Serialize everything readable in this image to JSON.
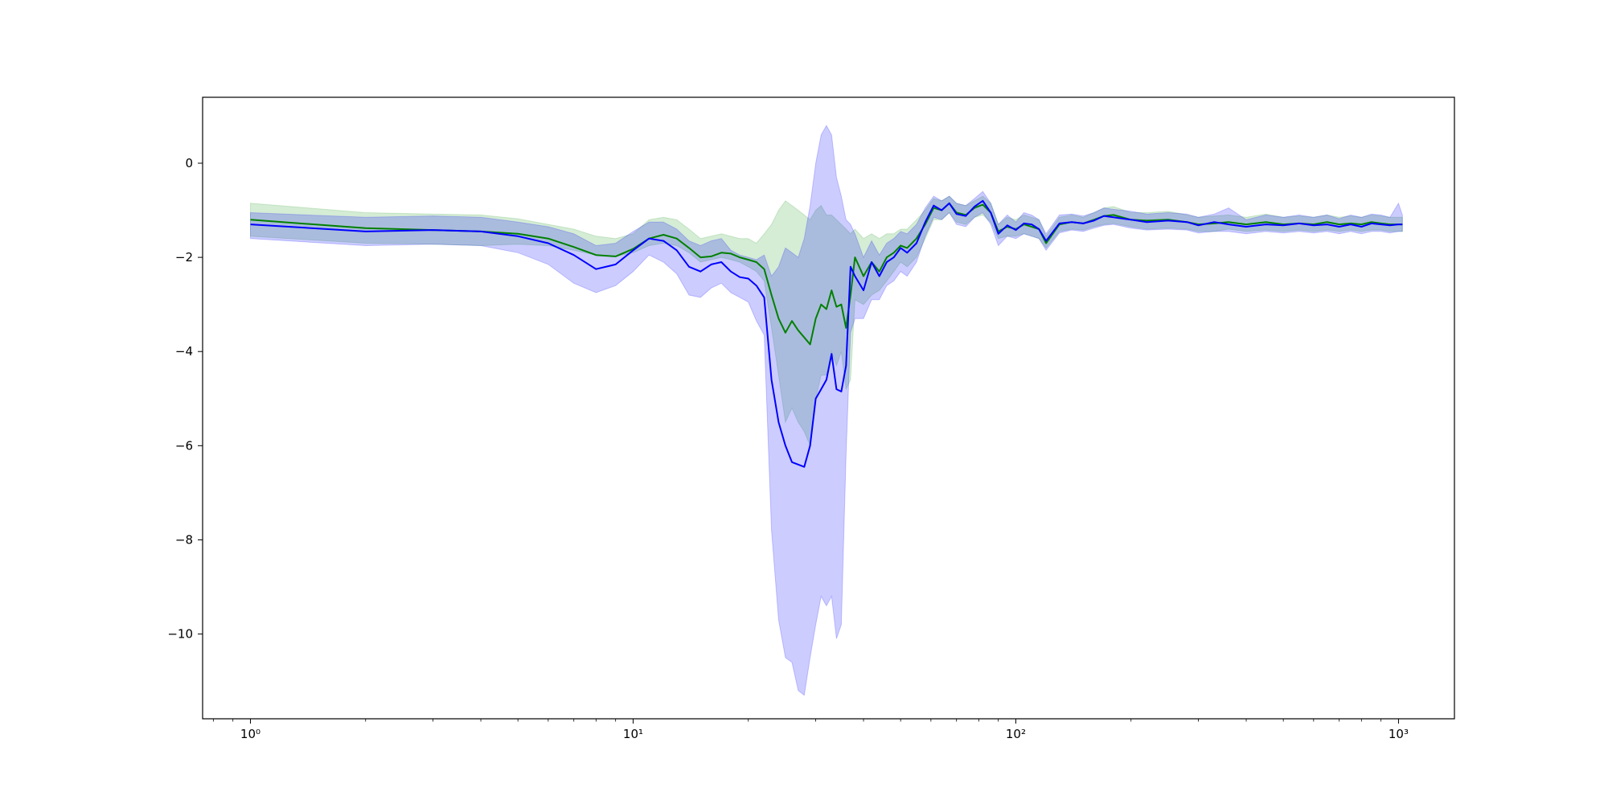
{
  "chart_data": {
    "type": "line",
    "title": "",
    "xlabel": "",
    "ylabel": "",
    "xscale": "log",
    "xlim": [
      0.75,
      1400
    ],
    "ylim": [
      -11.8,
      1.4
    ],
    "grid": false,
    "legend": "none",
    "x_ticks": [
      {
        "value": 1,
        "label": "10⁰"
      },
      {
        "value": 10,
        "label": "10¹"
      },
      {
        "value": 100,
        "label": "10²"
      },
      {
        "value": 1000,
        "label": "10³"
      }
    ],
    "y_ticks": [
      {
        "value": 0,
        "label": "0"
      },
      {
        "value": -2,
        "label": "−2"
      },
      {
        "value": -4,
        "label": "−4"
      },
      {
        "value": -6,
        "label": "−6"
      },
      {
        "value": -8,
        "label": "−8"
      },
      {
        "value": -10,
        "label": "−10"
      }
    ],
    "series": [
      {
        "color": "#008000",
        "band_color": "#2ca02c",
        "x": [
          1,
          2,
          3,
          4,
          5,
          6,
          7,
          8,
          9,
          10,
          11,
          12,
          13,
          14,
          15,
          16,
          17,
          18,
          19,
          20,
          21,
          22,
          23,
          24,
          25,
          26,
          27,
          28,
          29,
          30,
          31,
          32,
          33,
          34,
          35,
          36,
          37,
          38,
          40,
          42,
          44,
          46,
          48,
          50,
          52,
          55,
          58,
          61,
          64,
          67,
          70,
          74,
          78,
          82,
          86,
          90,
          95,
          100,
          105,
          110,
          115,
          120,
          130,
          140,
          150,
          160,
          170,
          180,
          200,
          220,
          250,
          280,
          300,
          330,
          360,
          400,
          450,
          500,
          550,
          600,
          650,
          700,
          750,
          800,
          850,
          900,
          950,
          1000,
          1024
        ],
        "y": [
          -1.2,
          -1.38,
          -1.42,
          -1.45,
          -1.5,
          -1.6,
          -1.78,
          -1.95,
          -1.98,
          -1.82,
          -1.6,
          -1.52,
          -1.6,
          -1.8,
          -2.0,
          -1.98,
          -1.9,
          -1.92,
          -2.0,
          -2.05,
          -2.1,
          -2.25,
          -2.8,
          -3.3,
          -3.6,
          -3.35,
          -3.55,
          -3.7,
          -3.85,
          -3.3,
          -3.0,
          -3.1,
          -2.7,
          -3.05,
          -3.0,
          -3.5,
          -2.8,
          -2.0,
          -2.4,
          -2.1,
          -2.3,
          -2.0,
          -1.9,
          -1.75,
          -1.8,
          -1.6,
          -1.3,
          -0.95,
          -1.0,
          -0.85,
          -1.05,
          -1.1,
          -0.95,
          -0.88,
          -1.05,
          -1.45,
          -1.35,
          -1.4,
          -1.3,
          -1.35,
          -1.4,
          -1.7,
          -1.3,
          -1.25,
          -1.28,
          -1.2,
          -1.12,
          -1.1,
          -1.2,
          -1.22,
          -1.2,
          -1.25,
          -1.3,
          -1.28,
          -1.25,
          -1.3,
          -1.25,
          -1.3,
          -1.28,
          -1.3,
          -1.25,
          -1.3,
          -1.28,
          -1.3,
          -1.25,
          -1.28,
          -1.3,
          -1.3,
          -1.3
        ],
        "lower": [
          -1.55,
          -1.7,
          -1.72,
          -1.75,
          -1.72,
          -1.75,
          -1.85,
          -1.95,
          -1.98,
          -1.9,
          -1.75,
          -1.7,
          -1.75,
          -1.9,
          -2.1,
          -2.05,
          -2.0,
          -2.05,
          -2.1,
          -2.2,
          -2.3,
          -2.5,
          -3.5,
          -4.5,
          -5.5,
          -5.2,
          -5.5,
          -5.7,
          -6.0,
          -5.0,
          -4.5,
          -4.5,
          -4.0,
          -4.3,
          -4.0,
          -4.8,
          -4.6,
          -2.9,
          -3.0,
          -2.8,
          -2.7,
          -2.5,
          -2.3,
          -2.1,
          -2.2,
          -2.0,
          -1.6,
          -1.2,
          -1.2,
          -1.05,
          -1.25,
          -1.3,
          -1.15,
          -1.1,
          -1.25,
          -1.6,
          -1.55,
          -1.55,
          -1.5,
          -1.55,
          -1.6,
          -1.8,
          -1.45,
          -1.4,
          -1.42,
          -1.35,
          -1.3,
          -1.28,
          -1.35,
          -1.4,
          -1.38,
          -1.4,
          -1.45,
          -1.45,
          -1.4,
          -1.45,
          -1.42,
          -1.45,
          -1.42,
          -1.45,
          -1.42,
          -1.45,
          -1.42,
          -1.45,
          -1.42,
          -1.42,
          -1.45,
          -1.45,
          -1.45
        ],
        "upper": [
          -0.85,
          -1.05,
          -1.08,
          -1.1,
          -1.18,
          -1.3,
          -1.4,
          -1.55,
          -1.6,
          -1.5,
          -1.2,
          -1.15,
          -1.2,
          -1.4,
          -1.6,
          -1.55,
          -1.5,
          -1.55,
          -1.6,
          -1.6,
          -1.7,
          -1.5,
          -1.3,
          -1.0,
          -0.8,
          -0.9,
          -1.0,
          -1.1,
          -1.2,
          -1.0,
          -0.9,
          -1.1,
          -1.1,
          -1.2,
          -1.3,
          -1.4,
          -1.5,
          -1.4,
          -1.6,
          -1.5,
          -1.6,
          -1.5,
          -1.5,
          -1.4,
          -1.4,
          -1.2,
          -1.0,
          -0.75,
          -0.8,
          -0.7,
          -0.85,
          -0.9,
          -0.8,
          -0.7,
          -0.85,
          -1.3,
          -1.15,
          -1.2,
          -1.1,
          -1.15,
          -1.2,
          -1.55,
          -1.15,
          -1.1,
          -1.15,
          -1.05,
          -0.95,
          -0.92,
          -1.05,
          -1.05,
          -1.02,
          -1.1,
          -1.15,
          -1.12,
          -1.1,
          -1.15,
          -1.08,
          -1.15,
          -1.12,
          -1.15,
          -1.1,
          -1.15,
          -1.12,
          -1.15,
          -1.1,
          -1.12,
          -1.15,
          -1.15,
          -1.15
        ]
      },
      {
        "color": "#0000ff",
        "band_color": "#0000ff",
        "x": [
          1,
          2,
          3,
          4,
          5,
          6,
          7,
          8,
          9,
          10,
          11,
          12,
          13,
          14,
          15,
          16,
          17,
          18,
          19,
          20,
          21,
          22,
          23,
          24,
          25,
          26,
          27,
          28,
          29,
          30,
          31,
          32,
          33,
          34,
          35,
          36,
          37,
          38,
          40,
          42,
          44,
          46,
          48,
          50,
          52,
          55,
          58,
          61,
          64,
          67,
          70,
          74,
          78,
          82,
          86,
          90,
          95,
          100,
          105,
          110,
          115,
          120,
          130,
          140,
          150,
          160,
          170,
          180,
          200,
          220,
          250,
          280,
          300,
          330,
          360,
          400,
          450,
          500,
          550,
          600,
          650,
          700,
          750,
          800,
          850,
          900,
          950,
          1000,
          1024
        ],
        "y": [
          -1.3,
          -1.45,
          -1.42,
          -1.45,
          -1.55,
          -1.7,
          -1.95,
          -2.25,
          -2.15,
          -1.85,
          -1.6,
          -1.65,
          -1.85,
          -2.2,
          -2.3,
          -2.15,
          -2.1,
          -2.3,
          -2.42,
          -2.45,
          -2.6,
          -2.85,
          -4.6,
          -5.5,
          -6.0,
          -6.35,
          -6.4,
          -6.45,
          -6.0,
          -5.0,
          -4.8,
          -4.6,
          -4.05,
          -4.8,
          -4.85,
          -4.3,
          -2.2,
          -2.4,
          -2.7,
          -2.1,
          -2.4,
          -2.1,
          -2.0,
          -1.8,
          -1.9,
          -1.7,
          -1.25,
          -0.9,
          -1.0,
          -0.85,
          -1.08,
          -1.12,
          -0.92,
          -0.8,
          -1.05,
          -1.5,
          -1.32,
          -1.42,
          -1.28,
          -1.3,
          -1.4,
          -1.65,
          -1.28,
          -1.25,
          -1.28,
          -1.22,
          -1.12,
          -1.15,
          -1.2,
          -1.25,
          -1.22,
          -1.25,
          -1.32,
          -1.25,
          -1.3,
          -1.35,
          -1.3,
          -1.32,
          -1.28,
          -1.32,
          -1.3,
          -1.35,
          -1.3,
          -1.35,
          -1.28,
          -1.3,
          -1.32,
          -1.3,
          -1.3
        ],
        "lower": [
          -1.6,
          -1.75,
          -1.72,
          -1.75,
          -1.9,
          -2.15,
          -2.55,
          -2.75,
          -2.6,
          -2.3,
          -1.95,
          -2.1,
          -2.35,
          -2.8,
          -2.85,
          -2.65,
          -2.55,
          -2.75,
          -2.85,
          -2.95,
          -3.35,
          -3.65,
          -7.8,
          -9.7,
          -10.5,
          -10.6,
          -11.2,
          -11.3,
          -10.5,
          -9.8,
          -9.2,
          -9.4,
          -9.2,
          -10.1,
          -9.8,
          -6.2,
          -3.6,
          -3.3,
          -3.3,
          -2.9,
          -2.9,
          -2.6,
          -2.5,
          -2.3,
          -2.4,
          -2.1,
          -1.55,
          -1.15,
          -1.2,
          -1.05,
          -1.3,
          -1.35,
          -1.15,
          -1.05,
          -1.3,
          -1.75,
          -1.55,
          -1.6,
          -1.5,
          -1.55,
          -1.6,
          -1.85,
          -1.48,
          -1.42,
          -1.45,
          -1.38,
          -1.32,
          -1.3,
          -1.38,
          -1.42,
          -1.4,
          -1.42,
          -1.48,
          -1.45,
          -1.45,
          -1.5,
          -1.45,
          -1.48,
          -1.45,
          -1.48,
          -1.45,
          -1.5,
          -1.45,
          -1.5,
          -1.45,
          -1.45,
          -1.48,
          -1.45,
          -1.45
        ],
        "upper": [
          -1.05,
          -1.15,
          -1.12,
          -1.15,
          -1.25,
          -1.35,
          -1.5,
          -1.75,
          -1.7,
          -1.45,
          -1.25,
          -1.25,
          -1.4,
          -1.65,
          -1.75,
          -1.65,
          -1.6,
          -1.85,
          -1.95,
          -2.0,
          -2.05,
          -1.95,
          -2.4,
          -2.2,
          -1.8,
          -1.9,
          -2.0,
          -1.6,
          -0.9,
          0.0,
          0.6,
          0.8,
          0.6,
          -0.3,
          -0.7,
          -1.2,
          -1.3,
          -1.5,
          -2.0,
          -1.65,
          -1.95,
          -1.7,
          -1.6,
          -1.45,
          -1.5,
          -1.3,
          -0.95,
          -0.7,
          -0.8,
          -0.7,
          -0.85,
          -0.9,
          -0.75,
          -0.6,
          -0.85,
          -1.3,
          -1.1,
          -1.25,
          -1.05,
          -1.1,
          -1.2,
          -1.5,
          -1.1,
          -1.08,
          -1.12,
          -1.05,
          -0.95,
          -0.98,
          -1.02,
          -1.08,
          -1.05,
          -1.08,
          -1.15,
          -1.08,
          -0.95,
          -1.2,
          -1.1,
          -1.15,
          -1.1,
          -1.15,
          -1.1,
          -1.18,
          -1.1,
          -1.15,
          -1.08,
          -1.1,
          -1.15,
          -0.85,
          -1.1
        ]
      }
    ]
  }
}
